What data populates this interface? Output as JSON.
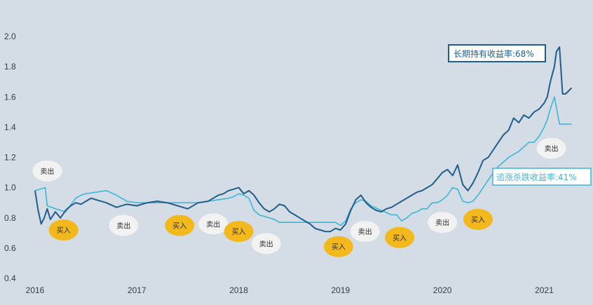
{
  "chart_data": {
    "type": "line",
    "x_labels": [
      "2016",
      "2017",
      "2018",
      "2019",
      "2020",
      "2021"
    ],
    "y_ticks": [
      "0.4",
      "0.6",
      "0.8",
      "1.0",
      "1.2",
      "1.4",
      "1.6",
      "1.8",
      "2.0"
    ],
    "ylim": [
      0.4,
      2.0
    ],
    "xlim": [
      2016.0,
      2021.3
    ],
    "grid": false,
    "colors": {
      "background": "#d4dde5",
      "hold": "#1f5d8c",
      "chase": "#3fb6d8",
      "buy_bubble": "#f2b81c",
      "sell_bubble": "#f2f2f2"
    },
    "series": [
      {
        "name": "hold",
        "x": [
          2016.0,
          2016.03,
          2016.06,
          2016.09,
          2016.12,
          2016.15,
          2016.2,
          2016.25,
          2016.3,
          2016.35,
          2016.4,
          2016.45,
          2016.5,
          2016.55,
          2016.6,
          2016.7,
          2016.8,
          2016.9,
          2017.0,
          2017.1,
          2017.2,
          2017.3,
          2017.4,
          2017.5,
          2017.6,
          2017.7,
          2017.75,
          2017.8,
          2017.85,
          2017.9,
          2017.95,
          2018.0,
          2018.05,
          2018.1,
          2018.15,
          2018.2,
          2018.25,
          2018.3,
          2018.35,
          2018.4,
          2018.45,
          2018.5,
          2018.55,
          2018.6,
          2018.65,
          2018.7,
          2018.75,
          2018.8,
          2018.85,
          2018.9,
          2018.95,
          2019.0,
          2019.05,
          2019.1,
          2019.15,
          2019.2,
          2019.25,
          2019.3,
          2019.35,
          2019.4,
          2019.45,
          2019.5,
          2019.55,
          2019.6,
          2019.65,
          2019.7,
          2019.75,
          2019.8,
          2019.85,
          2019.9,
          2019.95,
          2020.0,
          2020.05,
          2020.1,
          2020.15,
          2020.2,
          2020.25,
          2020.3,
          2020.35,
          2020.4,
          2020.45,
          2020.5,
          2020.55,
          2020.6,
          2020.65,
          2020.7,
          2020.75,
          2020.8,
          2020.85,
          2020.9,
          2020.95,
          2021.0,
          2021.03,
          2021.06,
          2021.08,
          2021.1,
          2021.12,
          2021.15,
          2021.18,
          2021.21,
          2021.24,
          2021.27
        ],
        "values": [
          0.98,
          0.85,
          0.76,
          0.8,
          0.86,
          0.79,
          0.84,
          0.8,
          0.85,
          0.88,
          0.9,
          0.89,
          0.91,
          0.93,
          0.92,
          0.9,
          0.87,
          0.89,
          0.88,
          0.9,
          0.91,
          0.9,
          0.88,
          0.86,
          0.9,
          0.91,
          0.93,
          0.95,
          0.96,
          0.98,
          0.99,
          1.0,
          0.96,
          0.98,
          0.95,
          0.9,
          0.86,
          0.84,
          0.86,
          0.89,
          0.88,
          0.84,
          0.82,
          0.8,
          0.78,
          0.76,
          0.73,
          0.72,
          0.71,
          0.71,
          0.73,
          0.72,
          0.76,
          0.85,
          0.92,
          0.95,
          0.9,
          0.87,
          0.85,
          0.84,
          0.86,
          0.87,
          0.89,
          0.91,
          0.93,
          0.95,
          0.97,
          0.98,
          1.0,
          1.02,
          1.06,
          1.1,
          1.12,
          1.08,
          1.15,
          1.02,
          0.98,
          1.03,
          1.1,
          1.18,
          1.2,
          1.25,
          1.3,
          1.35,
          1.38,
          1.46,
          1.43,
          1.48,
          1.46,
          1.5,
          1.52,
          1.56,
          1.6,
          1.7,
          1.75,
          1.8,
          1.9,
          1.93,
          1.62,
          1.62,
          1.64,
          1.66
        ]
      },
      {
        "name": "chase",
        "x": [
          2016.0,
          2016.1,
          2016.12,
          2016.2,
          2016.3,
          2016.4,
          2016.45,
          2016.5,
          2016.6,
          2016.7,
          2016.8,
          2016.9,
          2017.0,
          2017.2,
          2017.4,
          2017.6,
          2017.7,
          2017.8,
          2017.9,
          2017.95,
          2018.0,
          2018.05,
          2018.1,
          2018.15,
          2018.2,
          2018.25,
          2018.3,
          2018.35,
          2018.4,
          2018.5,
          2018.6,
          2018.7,
          2018.8,
          2018.9,
          2018.95,
          2019.0,
          2019.05,
          2019.1,
          2019.15,
          2019.2,
          2019.25,
          2019.3,
          2019.4,
          2019.5,
          2019.55,
          2019.6,
          2019.65,
          2019.7,
          2019.75,
          2019.8,
          2019.85,
          2019.9,
          2019.95,
          2020.0,
          2020.05,
          2020.1,
          2020.15,
          2020.2,
          2020.25,
          2020.3,
          2020.35,
          2020.4,
          2020.45,
          2020.5,
          2020.55,
          2020.6,
          2020.65,
          2020.7,
          2020.75,
          2020.8,
          2020.85,
          2020.9,
          2020.95,
          2021.0,
          2021.03,
          2021.06,
          2021.1,
          2021.15,
          2021.2,
          2021.27
        ],
        "values": [
          0.98,
          1.0,
          0.88,
          0.86,
          0.84,
          0.93,
          0.95,
          0.96,
          0.97,
          0.98,
          0.95,
          0.91,
          0.9,
          0.9,
          0.9,
          0.9,
          0.91,
          0.92,
          0.93,
          0.94,
          0.96,
          0.95,
          0.93,
          0.85,
          0.82,
          0.81,
          0.8,
          0.79,
          0.77,
          0.77,
          0.77,
          0.77,
          0.77,
          0.77,
          0.77,
          0.75,
          0.78,
          0.86,
          0.9,
          0.92,
          0.91,
          0.88,
          0.85,
          0.82,
          0.82,
          0.78,
          0.8,
          0.83,
          0.84,
          0.86,
          0.86,
          0.9,
          0.9,
          0.92,
          0.95,
          1.0,
          0.99,
          0.91,
          0.9,
          0.91,
          0.95,
          1.0,
          1.05,
          1.1,
          1.14,
          1.17,
          1.2,
          1.22,
          1.24,
          1.27,
          1.3,
          1.3,
          1.34,
          1.4,
          1.45,
          1.52,
          1.6,
          1.42,
          1.42,
          1.42
        ]
      }
    ],
    "annotations": {
      "hold_label": "长期持有收益率:68%",
      "chase_label": "追涨杀跌收益率:41%"
    },
    "markers": [
      {
        "type": "buy",
        "text": "买入",
        "x": 2016.28,
        "y": 0.72
      },
      {
        "type": "sell",
        "text": "卖出",
        "x": 2016.12,
        "y": 1.11
      },
      {
        "type": "sell",
        "text": "卖出",
        "x": 2016.87,
        "y": 0.75
      },
      {
        "type": "buy",
        "text": "买入",
        "x": 2017.42,
        "y": 0.75
      },
      {
        "type": "sell",
        "text": "卖出",
        "x": 2017.75,
        "y": 0.76
      },
      {
        "type": "buy",
        "text": "买入",
        "x": 2018.0,
        "y": 0.71
      },
      {
        "type": "sell",
        "text": "卖出",
        "x": 2018.27,
        "y": 0.63
      },
      {
        "type": "buy",
        "text": "买入",
        "x": 2018.98,
        "y": 0.61
      },
      {
        "type": "sell",
        "text": "卖出",
        "x": 2019.24,
        "y": 0.71
      },
      {
        "type": "buy",
        "text": "买入",
        "x": 2019.58,
        "y": 0.67
      },
      {
        "type": "sell",
        "text": "卖出",
        "x": 2020.0,
        "y": 0.77
      },
      {
        "type": "buy",
        "text": "买入",
        "x": 2020.35,
        "y": 0.79
      },
      {
        "type": "sell",
        "text": "卖出",
        "x": 2021.07,
        "y": 1.26
      }
    ]
  }
}
